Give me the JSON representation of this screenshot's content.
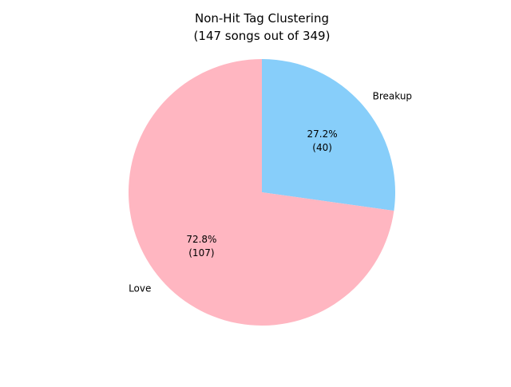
{
  "chart_data": {
    "type": "pie",
    "title_line1": "Non-Hit Tag Clustering",
    "title_line2": "(147 songs out of 349)",
    "slices": [
      {
        "label": "Breakup",
        "value": 40,
        "percent_label": "27.2%",
        "count_label": "(40)",
        "color": "#87cefa"
      },
      {
        "label": "Love",
        "value": 107,
        "percent_label": "72.8%",
        "count_label": "(107)",
        "color": "#ffb6c1"
      }
    ],
    "start_angle_deg": 90,
    "direction": "clockwise"
  }
}
